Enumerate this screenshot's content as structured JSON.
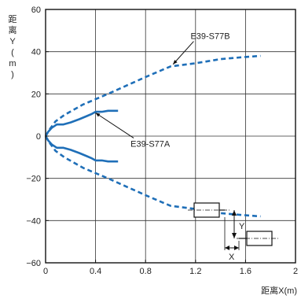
{
  "chart_data": {
    "type": "line",
    "title": "",
    "xlabel": "距离X(m)",
    "ylabel": "距离Y(m)",
    "xlim": [
      0,
      2
    ],
    "ylim": [
      -60,
      60
    ],
    "xticks": [
      0,
      0.4,
      0.8,
      1.2,
      1.6,
      2
    ],
    "yticks": [
      -60,
      -40,
      -20,
      0,
      20,
      40,
      60
    ],
    "xtick_labels": [
      "0",
      "0.4",
      "0.8",
      "1.2",
      "1.6",
      "2"
    ],
    "ytick_labels": [
      "−60",
      "−40",
      "−20",
      "0",
      "20",
      "40",
      "60"
    ],
    "grid": true,
    "line_color": "#1f6fb8",
    "series": [
      {
        "name": "E39-S77A",
        "style": "solid",
        "x": [
          0,
          0.02,
          0.05,
          0.09,
          0.14,
          0.2,
          0.27,
          0.33,
          0.37,
          0.4,
          0.45,
          0.5,
          0.55,
          0.58
        ],
        "y": [
          0,
          2,
          4,
          5.5,
          5.5,
          6.5,
          8,
          9.5,
          10.5,
          11.5,
          11.5,
          12,
          12,
          12
        ]
      },
      {
        "name": "",
        "style": "solid",
        "x": [
          0,
          0.02,
          0.05,
          0.09,
          0.14,
          0.2,
          0.27,
          0.33,
          0.37,
          0.4,
          0.45,
          0.5,
          0.55,
          0.58
        ],
        "y": [
          0,
          -2,
          -4,
          -5.5,
          -5.5,
          -6.5,
          -8,
          -9.5,
          -10.5,
          -11.5,
          -11.5,
          -12,
          -12,
          -12
        ]
      },
      {
        "name": "E39-S77B",
        "style": "dashed",
        "x": [
          0,
          0.03,
          0.08,
          0.15,
          0.3,
          0.5,
          0.8,
          1.0,
          1.2,
          1.4,
          1.6,
          1.72
        ],
        "y": [
          0,
          3,
          7,
          10,
          15,
          20,
          28,
          33,
          34.5,
          36.5,
          37.5,
          38
        ]
      },
      {
        "name": "",
        "style": "dashed",
        "x": [
          0,
          0.03,
          0.08,
          0.15,
          0.3,
          0.5,
          0.8,
          1.0,
          1.2,
          1.4,
          1.6,
          1.72
        ],
        "y": [
          0,
          -3,
          -7,
          -10,
          -15,
          -20,
          -28,
          -33,
          -34.5,
          -36.5,
          -37.5,
          -38
        ]
      }
    ],
    "annotations": [
      {
        "text": "E39-S77B",
        "x": 1.16,
        "y": 46,
        "pointer_to": [
          1.02,
          34
        ]
      },
      {
        "text": "E39-S77A",
        "x": 0.68,
        "y": -5,
        "pointer_to": [
          0.4,
          11
        ]
      }
    ],
    "inset": {
      "x_label": "X",
      "y_label": "Y"
    }
  }
}
